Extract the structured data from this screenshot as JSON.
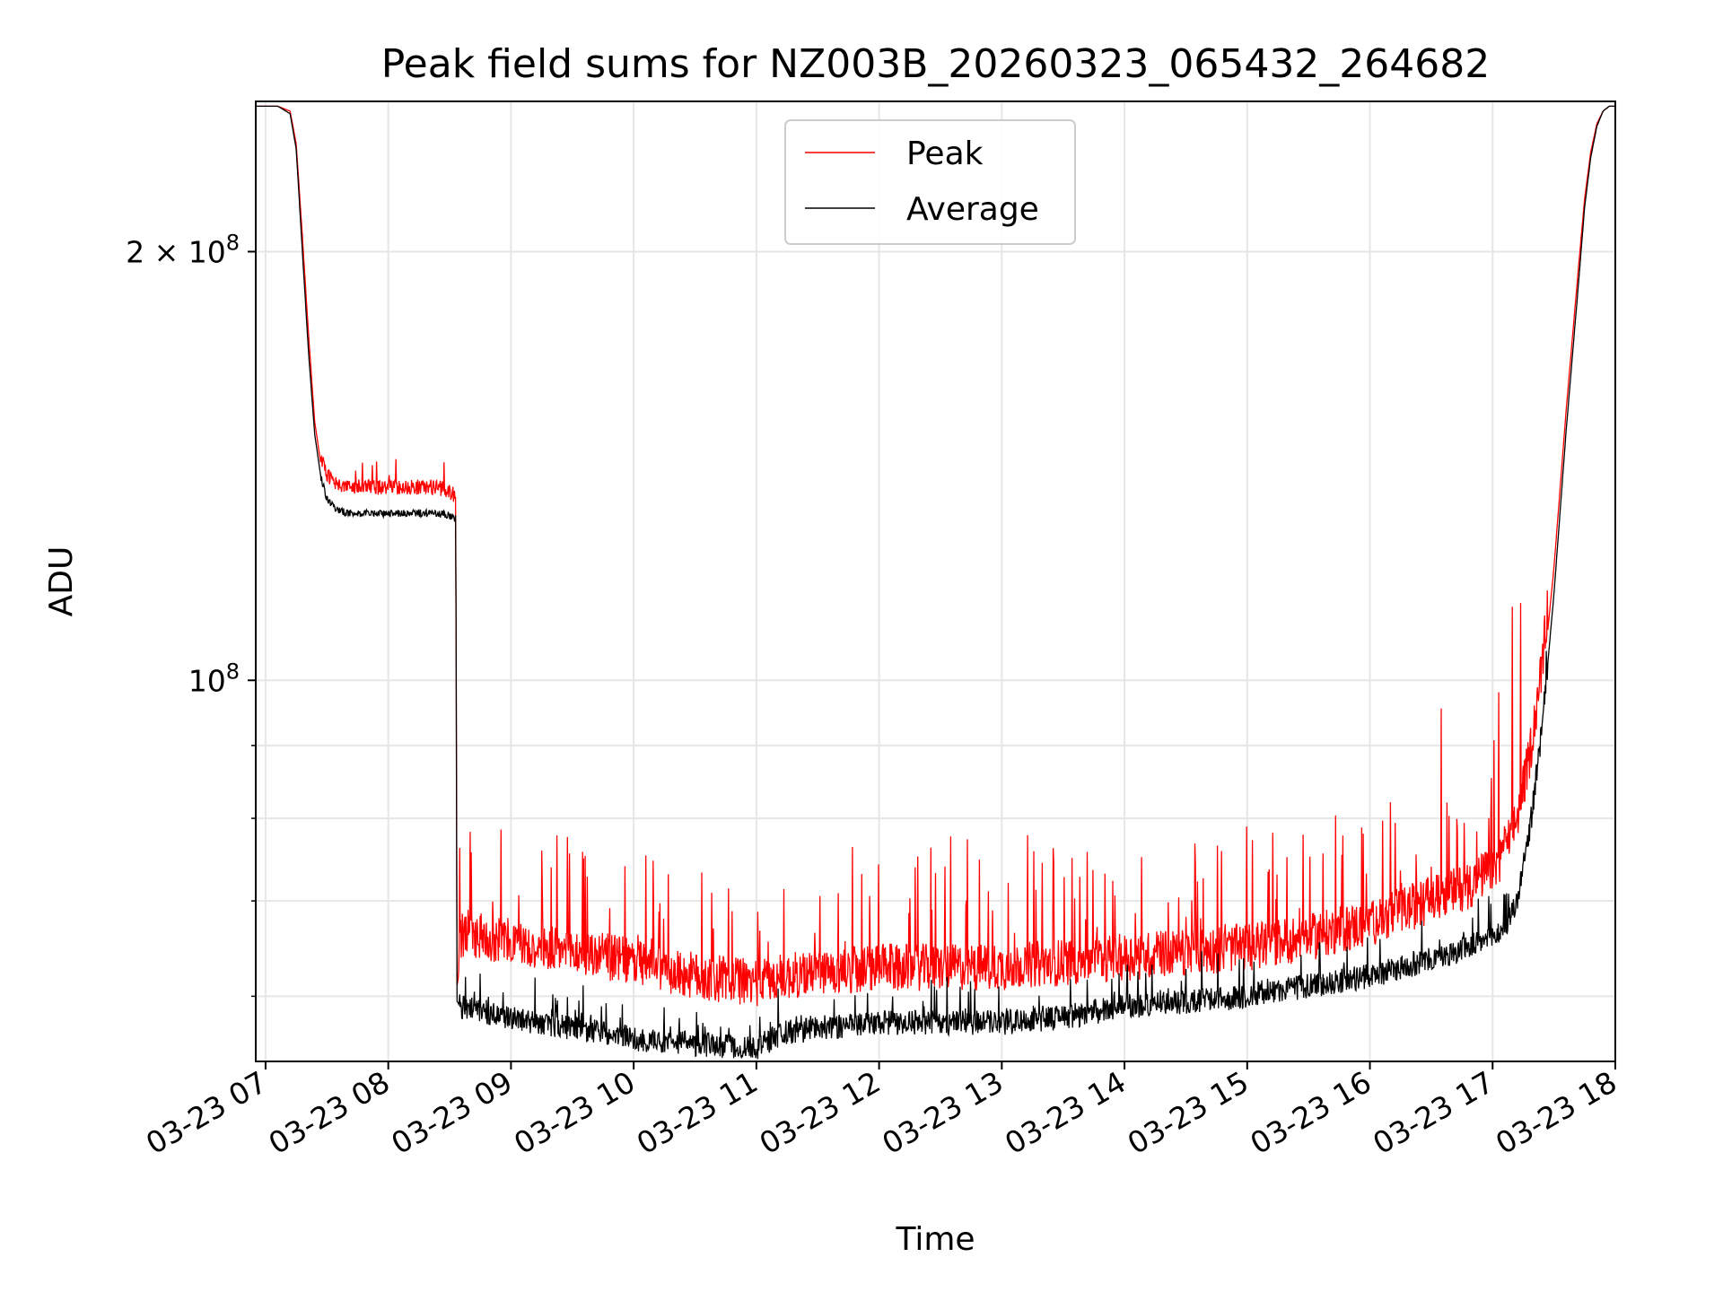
{
  "chart_data": {
    "type": "line",
    "title": "Peak field sums for NZ003B_20260323_065432_264682",
    "xlabel": "Time",
    "ylabel": "ADU",
    "yscale": "log",
    "ylim": [
      54000000,
      255000000
    ],
    "xlim": [
      6.92,
      18.0
    ],
    "grid": true,
    "legend_position": "top-center",
    "x_ticks": [
      {
        "value": 7,
        "label": "03-23 07"
      },
      {
        "value": 8,
        "label": "03-23 08"
      },
      {
        "value": 9,
        "label": "03-23 09"
      },
      {
        "value": 10,
        "label": "03-23 10"
      },
      {
        "value": 11,
        "label": "03-23 11"
      },
      {
        "value": 12,
        "label": "03-23 12"
      },
      {
        "value": 13,
        "label": "03-23 13"
      },
      {
        "value": 14,
        "label": "03-23 14"
      },
      {
        "value": 15,
        "label": "03-23 15"
      },
      {
        "value": 16,
        "label": "03-23 16"
      },
      {
        "value": 17,
        "label": "03-23 17"
      },
      {
        "value": 18,
        "label": "03-23 18"
      }
    ],
    "y_major_ticks": [
      {
        "value": 100000000,
        "base": "10",
        "exp": "8",
        "mantissa": ""
      },
      {
        "value": 200000000,
        "base": "10",
        "exp": "8",
        "mantissa": "2 × "
      }
    ],
    "y_minor_ticks": [
      60000000,
      70000000,
      80000000,
      90000000
    ],
    "series": [
      {
        "name": "Peak",
        "color": "#ff0000",
        "x": [
          6.92,
          7.0,
          7.1,
          7.2,
          7.25,
          7.3,
          7.35,
          7.4,
          7.45,
          7.5,
          7.55,
          7.6,
          7.7,
          7.8,
          7.9,
          8.0,
          8.1,
          8.2,
          8.3,
          8.4,
          8.5,
          8.55,
          8.56,
          8.6,
          8.8,
          9.0,
          9.2,
          9.5,
          9.8,
          10.0,
          10.3,
          10.6,
          11.0,
          11.2,
          11.5,
          12.0,
          12.5,
          13.0,
          13.5,
          14.0,
          14.5,
          15.0,
          15.5,
          16.0,
          16.3,
          16.6,
          16.8,
          17.0,
          17.1,
          17.2,
          17.3,
          17.4,
          17.5,
          17.6,
          17.7,
          17.75,
          17.8,
          17.85,
          17.9,
          17.95,
          18.0
        ],
        "y": [
          253000000,
          253000000,
          253000000,
          251000000,
          238000000,
          205000000,
          175000000,
          152000000,
          142000000,
          138000000,
          136000000,
          135000000,
          135000000,
          135000000,
          135000000,
          135000000,
          135000000,
          135000000,
          135000000,
          135000000,
          134000000,
          133000000,
          61000000,
          64000000,
          63500000,
          63000000,
          62500000,
          62000000,
          61500000,
          61000000,
          60000000,
          59500000,
          59000000,
          59500000,
          60000000,
          60500000,
          60500000,
          60500000,
          61000000,
          61500000,
          62000000,
          62500000,
          63500000,
          65000000,
          66500000,
          68000000,
          69000000,
          71000000,
          73000000,
          77000000,
          85000000,
          98000000,
          120000000,
          155000000,
          195000000,
          218000000,
          235000000,
          246000000,
          251000000,
          253000000,
          253000000
        ]
      },
      {
        "name": "Average",
        "color": "#000000",
        "x": [
          6.92,
          7.0,
          7.1,
          7.2,
          7.25,
          7.3,
          7.35,
          7.4,
          7.45,
          7.5,
          7.55,
          7.6,
          7.7,
          7.8,
          7.9,
          8.0,
          8.1,
          8.2,
          8.3,
          8.4,
          8.5,
          8.55,
          8.56,
          8.6,
          8.8,
          9.0,
          9.2,
          9.5,
          9.8,
          10.0,
          10.3,
          10.6,
          11.0,
          11.2,
          11.5,
          12.0,
          12.5,
          13.0,
          13.5,
          14.0,
          14.5,
          15.0,
          15.5,
          16.0,
          16.3,
          16.6,
          16.8,
          17.0,
          17.1,
          17.2,
          17.3,
          17.4,
          17.5,
          17.6,
          17.7,
          17.75,
          17.8,
          17.85,
          17.9,
          17.95,
          18.0
        ],
        "y": [
          253000000,
          253000000,
          253000000,
          250000000,
          236000000,
          200000000,
          170000000,
          149000000,
          139000000,
          134000000,
          132500000,
          131500000,
          131000000,
          131000000,
          131000000,
          131000000,
          131000000,
          131000000,
          131000000,
          131000000,
          130500000,
          130000000,
          59500000,
          59000000,
          58500000,
          58000000,
          57500000,
          57000000,
          56500000,
          56000000,
          55700000,
          55500000,
          55200000,
          56500000,
          57000000,
          57500000,
          57500000,
          57500000,
          58000000,
          59000000,
          59500000,
          60000000,
          61000000,
          62000000,
          63000000,
          64000000,
          65000000,
          66000000,
          67000000,
          70000000,
          78000000,
          92000000,
          115000000,
          150000000,
          190000000,
          215000000,
          233000000,
          245000000,
          251000000,
          253000000,
          253000000
        ]
      }
    ]
  }
}
